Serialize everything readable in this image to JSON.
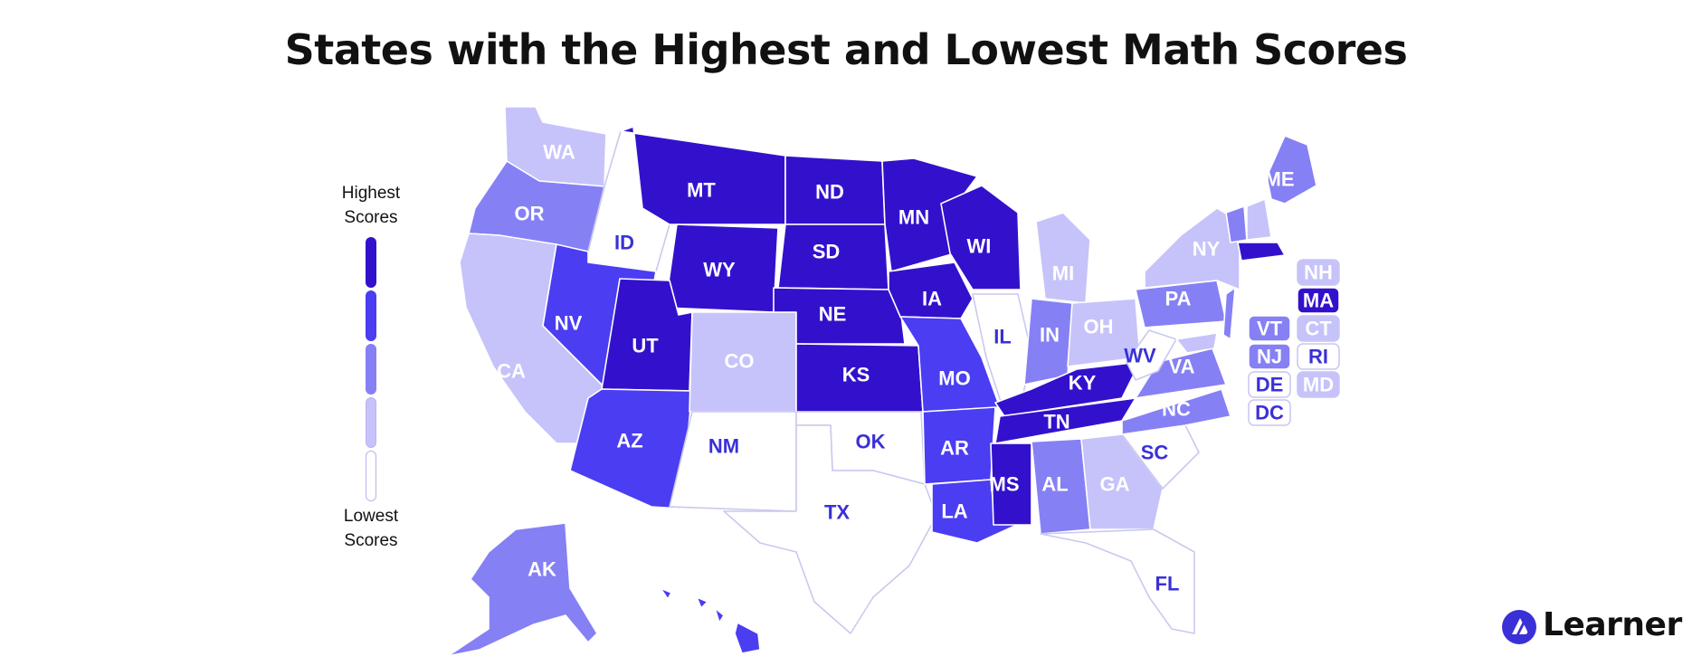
{
  "title": "States with the Highest and Lowest Math Scores",
  "legend": {
    "top_label": "Highest\nScores",
    "bottom_label": "Lowest\nScores",
    "levels": [
      {
        "tier": 5,
        "color": "#3311cc"
      },
      {
        "tier": 4,
        "color": "#4a3df2"
      },
      {
        "tier": 3,
        "color": "#8680f5"
      },
      {
        "tier": 2,
        "color": "#c6c3fa"
      },
      {
        "tier": 1,
        "color": "#ffffff"
      }
    ]
  },
  "states": [
    {
      "code": "WA",
      "tier": 2
    },
    {
      "code": "OR",
      "tier": 3
    },
    {
      "code": "CA",
      "tier": 2
    },
    {
      "code": "ID",
      "tier": 1
    },
    {
      "code": "NV",
      "tier": 4
    },
    {
      "code": "MT",
      "tier": 5
    },
    {
      "code": "WY",
      "tier": 5
    },
    {
      "code": "UT",
      "tier": 5
    },
    {
      "code": "AZ",
      "tier": 4
    },
    {
      "code": "CO",
      "tier": 2
    },
    {
      "code": "NM",
      "tier": 1
    },
    {
      "code": "ND",
      "tier": 5
    },
    {
      "code": "SD",
      "tier": 5
    },
    {
      "code": "NE",
      "tier": 5
    },
    {
      "code": "KS",
      "tier": 5
    },
    {
      "code": "OK",
      "tier": 1
    },
    {
      "code": "TX",
      "tier": 1
    },
    {
      "code": "MN",
      "tier": 5
    },
    {
      "code": "IA",
      "tier": 5
    },
    {
      "code": "MO",
      "tier": 4
    },
    {
      "code": "AR",
      "tier": 4
    },
    {
      "code": "LA",
      "tier": 4
    },
    {
      "code": "WI",
      "tier": 5
    },
    {
      "code": "IL",
      "tier": 1
    },
    {
      "code": "MI",
      "tier": 2
    },
    {
      "code": "IN",
      "tier": 3
    },
    {
      "code": "OH",
      "tier": 2
    },
    {
      "code": "KY",
      "tier": 5
    },
    {
      "code": "TN",
      "tier": 5
    },
    {
      "code": "MS",
      "tier": 5
    },
    {
      "code": "AL",
      "tier": 3
    },
    {
      "code": "GA",
      "tier": 2
    },
    {
      "code": "FL",
      "tier": 1
    },
    {
      "code": "SC",
      "tier": 1
    },
    {
      "code": "NC",
      "tier": 3
    },
    {
      "code": "VA",
      "tier": 3
    },
    {
      "code": "WV",
      "tier": 1
    },
    {
      "code": "PA",
      "tier": 3
    },
    {
      "code": "NY",
      "tier": 2
    },
    {
      "code": "ME",
      "tier": 3
    },
    {
      "code": "AK",
      "tier": 3
    },
    {
      "code": "HI",
      "tier": 4
    },
    {
      "code": "NH",
      "tier": 2
    },
    {
      "code": "MA",
      "tier": 5
    },
    {
      "code": "VT",
      "tier": 3
    },
    {
      "code": "CT",
      "tier": 2
    },
    {
      "code": "NJ",
      "tier": 3
    },
    {
      "code": "RI",
      "tier": 1
    },
    {
      "code": "DE",
      "tier": 1
    },
    {
      "code": "MD",
      "tier": 2
    },
    {
      "code": "DC",
      "tier": 1
    }
  ],
  "northeast_boxes": [
    "NH",
    "MA",
    "VT",
    "CT",
    "NJ",
    "RI",
    "DE",
    "MD",
    "DC"
  ],
  "brand": {
    "name": "Learner",
    "icon": "learner-logo-icon"
  }
}
